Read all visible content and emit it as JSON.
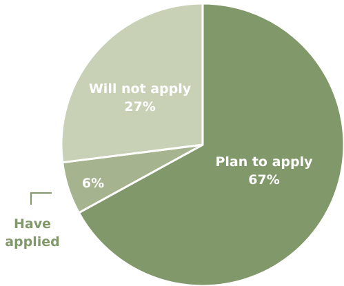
{
  "chart_data": {
    "type": "pie",
    "title": "",
    "slices": [
      {
        "label": "Plan to apply",
        "value": 67,
        "value_label": "67%",
        "color": "#81996a"
      },
      {
        "label": "Have applied",
        "value": 6,
        "value_label": "6%",
        "color": "#a5b48e"
      },
      {
        "label": "Will not apply",
        "value": 27,
        "value_label": "27%",
        "color": "#c8d0b5"
      }
    ],
    "callout_color": "#81996a",
    "start_angle_deg": 0,
    "direction": "clockwise",
    "legend": "none"
  }
}
